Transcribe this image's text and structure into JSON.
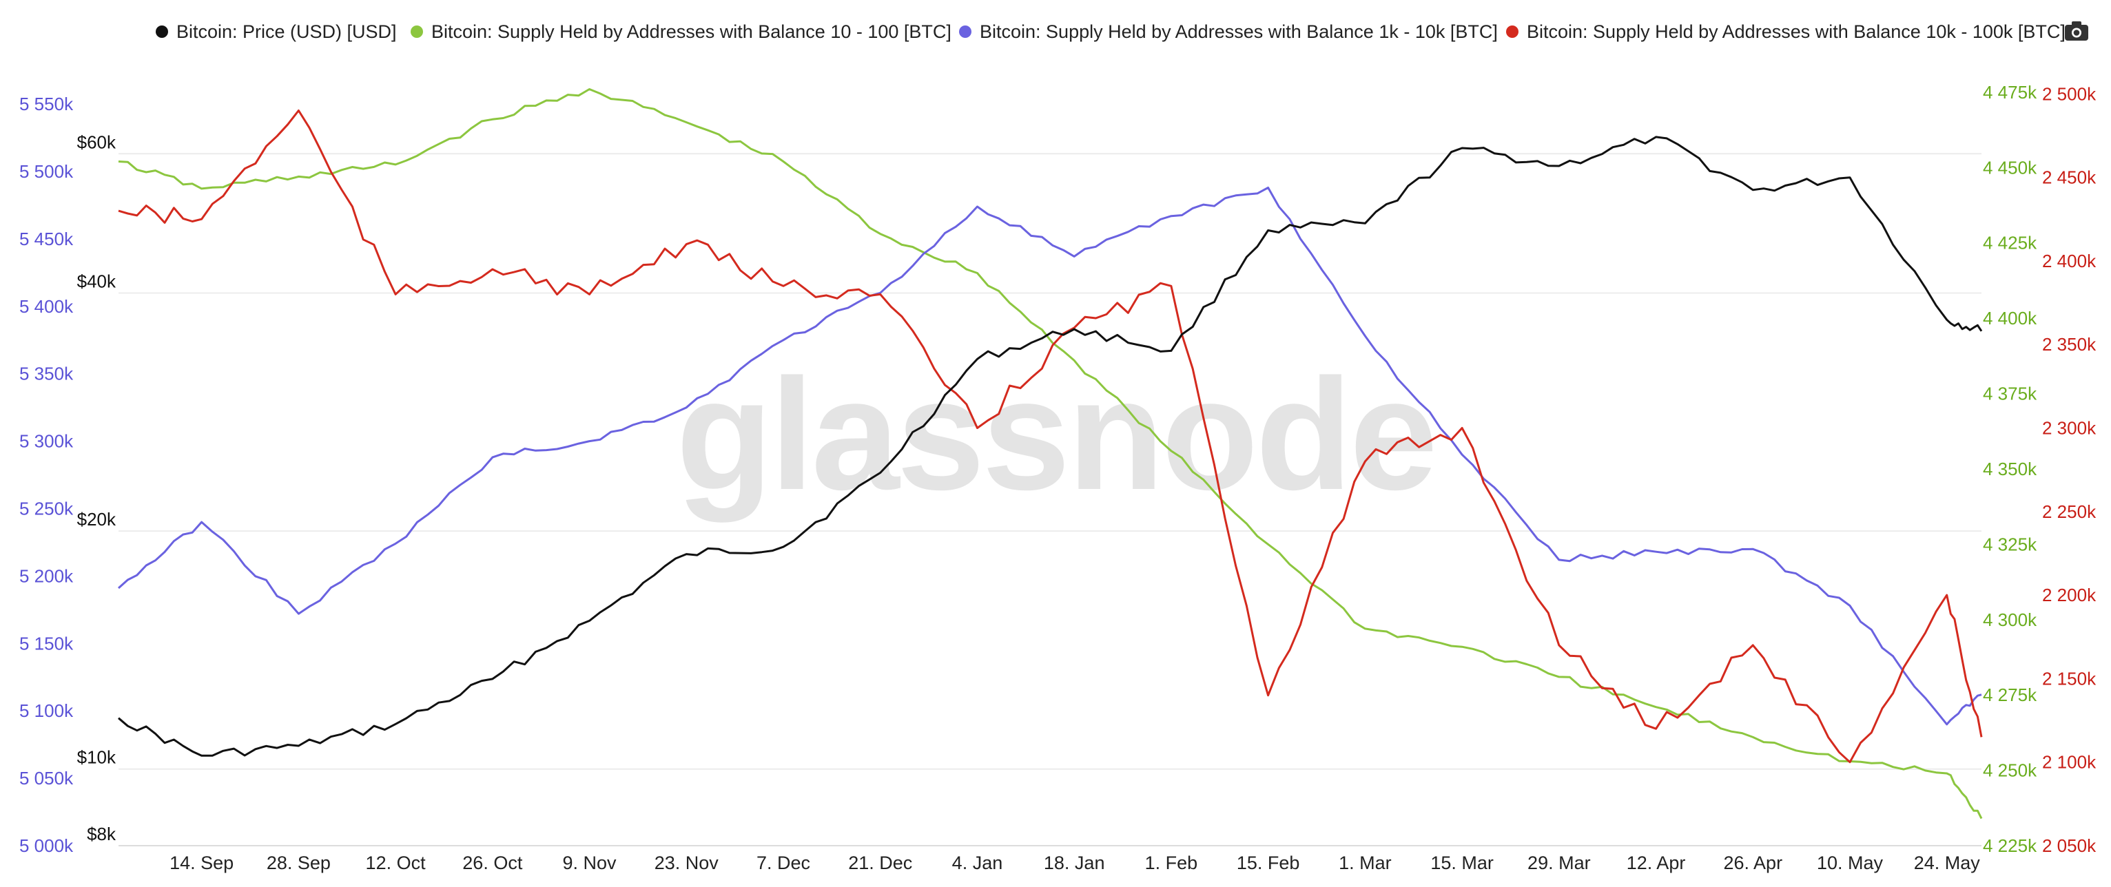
{
  "toolbar": {
    "camera_icon": "camera-icon"
  },
  "watermark": "glassnode",
  "colors": {
    "price": "#111111",
    "s10_100": "#8cc63f",
    "s1k_10k": "#6a62e0",
    "s10k_100k": "#d42a1e",
    "grid": "#ececec"
  },
  "chart_data": {
    "type": "line",
    "x_tick_labels": [
      "14. Sep",
      "28. Sep",
      "12. Oct",
      "26. Oct",
      "9. Nov",
      "23. Nov",
      "7. Dec",
      "21. Dec",
      "4. Jan",
      "18. Jan",
      "1. Feb",
      "15. Feb",
      "1. Mar",
      "15. Mar",
      "29. Mar",
      "12. Apr",
      "26. Apr",
      "10. May",
      "24. May"
    ],
    "x": [
      "2020-09-02",
      "2020-09-14",
      "2020-09-28",
      "2020-10-12",
      "2020-10-26",
      "2020-11-09",
      "2020-11-23",
      "2020-12-07",
      "2020-12-21",
      "2021-01-04",
      "2021-01-18",
      "2021-02-01",
      "2021-02-15",
      "2021-03-01",
      "2021-03-15",
      "2021-03-29",
      "2021-04-12",
      "2021-04-26",
      "2021-05-10",
      "2021-05-24",
      "2021-05-29"
    ],
    "axes": {
      "left_btc": {
        "ticks": [
          "5 000k",
          "5 050k",
          "5 100k",
          "5 150k",
          "5 200k",
          "5 250k",
          "5 300k",
          "5 350k",
          "5 400k",
          "5 450k",
          "5 500k",
          "5 550k"
        ],
        "range": [
          5000000,
          5570000
        ]
      },
      "left_price": {
        "scale": "log",
        "ticks": [
          "$8k",
          "$10k",
          "$20k",
          "$40k",
          "$60k"
        ],
        "range": [
          8000,
          75000
        ]
      },
      "right_green": {
        "ticks": [
          "4 225k",
          "4 250k",
          "4 275k",
          "4 300k",
          "4 325k",
          "4 350k",
          "4 375k",
          "4 400k",
          "4 425k",
          "4 450k",
          "4 475k"
        ],
        "range": [
          4225000,
          4480000
        ]
      },
      "right_red": {
        "ticks": [
          "2 050k",
          "2 100k",
          "2 150k",
          "2 200k",
          "2 250k",
          "2 300k",
          "2 350k",
          "2 400k",
          "2 450k",
          "2 500k"
        ],
        "range": [
          2050000,
          2510000
        ]
      }
    },
    "series": [
      {
        "name": "Bitcoin: Price (USD) [USD]",
        "axis": "left_price",
        "color": "#111111",
        "values": [
          11600,
          10400,
          10700,
          11400,
          13000,
          15400,
          18700,
          19100,
          23700,
          33000,
          36000,
          33800,
          48000,
          49000,
          61000,
          57900,
          63000,
          54000,
          56000,
          37000,
          35800
        ]
      },
      {
        "name": "Bitcoin: Supply Held by Addresses with Balance 10 - 100 [BTC]",
        "axis": "right_green",
        "color": "#8cc63f",
        "values": [
          4452000,
          4443000,
          4447000,
          4451000,
          4466000,
          4476000,
          4465000,
          4452000,
          4428000,
          4415000,
          4386000,
          4356000,
          4325000,
          4297000,
          4291000,
          4281000,
          4271000,
          4261000,
          4253000,
          4249000,
          4234000
        ]
      },
      {
        "name": "Bitcoin: Supply Held by Addresses with Balance 1k - 10k [BTC]",
        "axis": "left_btc",
        "color": "#6a62e0",
        "values": [
          5191000,
          5240000,
          5172000,
          5224000,
          5288000,
          5300000,
          5325000,
          5375000,
          5410000,
          5474000,
          5437000,
          5467000,
          5488000,
          5378000,
          5290000,
          5212000,
          5218000,
          5220000,
          5178000,
          5090000,
          5112000
        ]
      },
      {
        "name": "Bitcoin: Supply Held by Addresses with Balance 10k - 100k [BTC]",
        "axis": "right_red",
        "color": "#d42a1e",
        "values": [
          2430000,
          2425000,
          2490000,
          2380000,
          2395000,
          2380000,
          2410000,
          2385000,
          2380000,
          2300000,
          2360000,
          2385000,
          2140000,
          2280000,
          2300000,
          2170000,
          2120000,
          2170000,
          2100000,
          2200000,
          2115000
        ]
      }
    ],
    "grid": true,
    "legend": "top"
  }
}
